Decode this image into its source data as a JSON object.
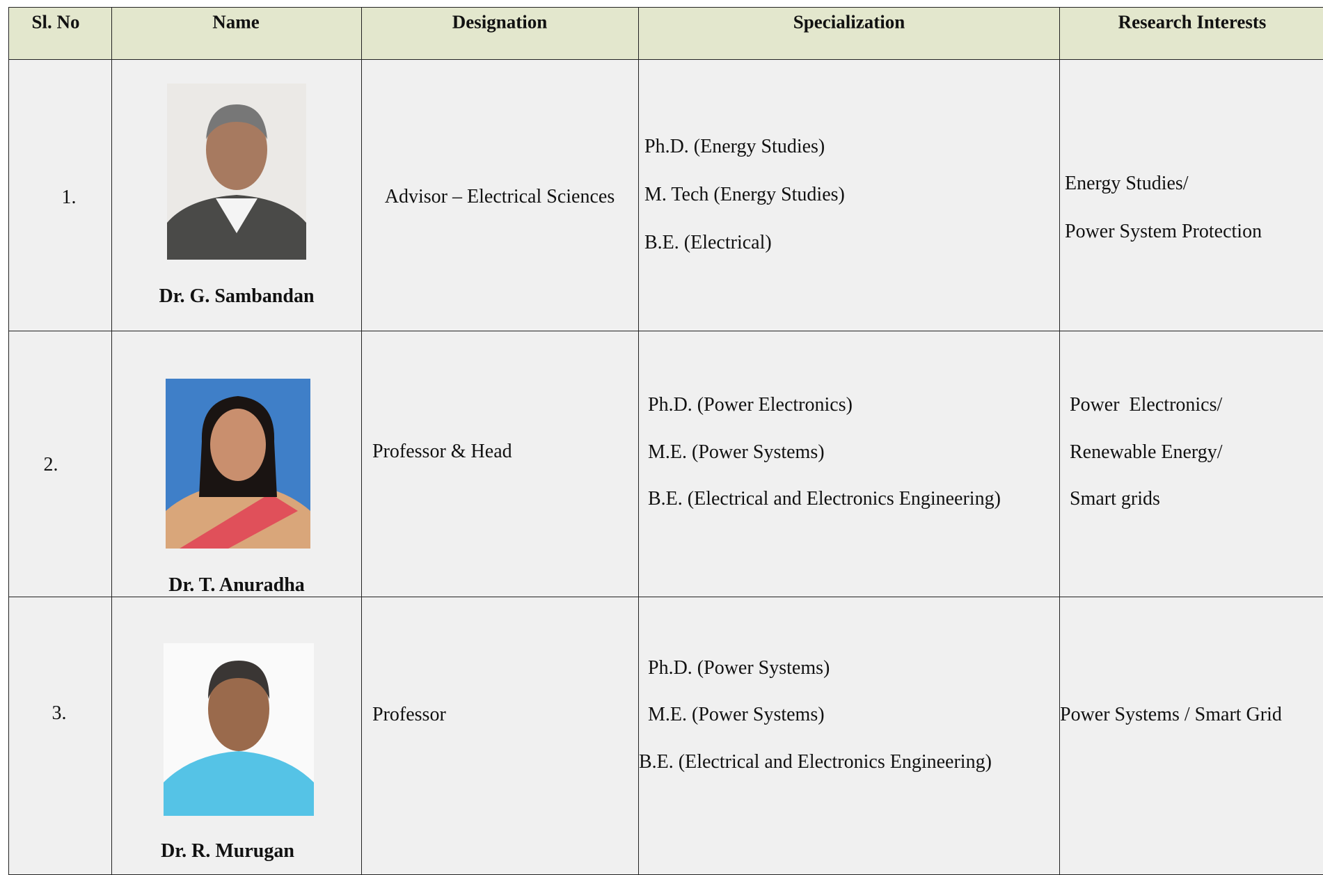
{
  "table": {
    "headers": [
      "Sl. No",
      "Name",
      "Designation",
      "Specialization",
      "Research Interests"
    ],
    "rows": [
      {
        "sl_no": "1.",
        "name": "Dr. G. Sambandan",
        "designation": "Advisor – Electrical Sciences",
        "specialization": [
          "Ph.D. (Energy Studies)",
          "M. Tech (Energy Studies)",
          "B.E. (Electrical)"
        ],
        "research_interests": [
          "Energy Studies/",
          "Power System Protection"
        ]
      },
      {
        "sl_no": "2.",
        "name": "Dr. T. Anuradha",
        "designation": "Professor & Head",
        "specialization": [
          "Ph.D. (Power Electronics)",
          "M.E. (Power Systems)",
          "B.E. (Electrical and Electronics Engineering)"
        ],
        "research_interests": [
          "Power  Electronics/",
          "Renewable Energy/",
          "Smart grids"
        ]
      },
      {
        "sl_no": "3.",
        "name": "Dr. R. Murugan",
        "designation": "Professor",
        "specialization": [
          "Ph.D. (Power Systems)",
          "M.E. (Power Systems)",
          "B.E. (Electrical and Electronics Engineering)"
        ],
        "research_interests": [
          "Power Systems / Smart Grid"
        ]
      }
    ]
  }
}
